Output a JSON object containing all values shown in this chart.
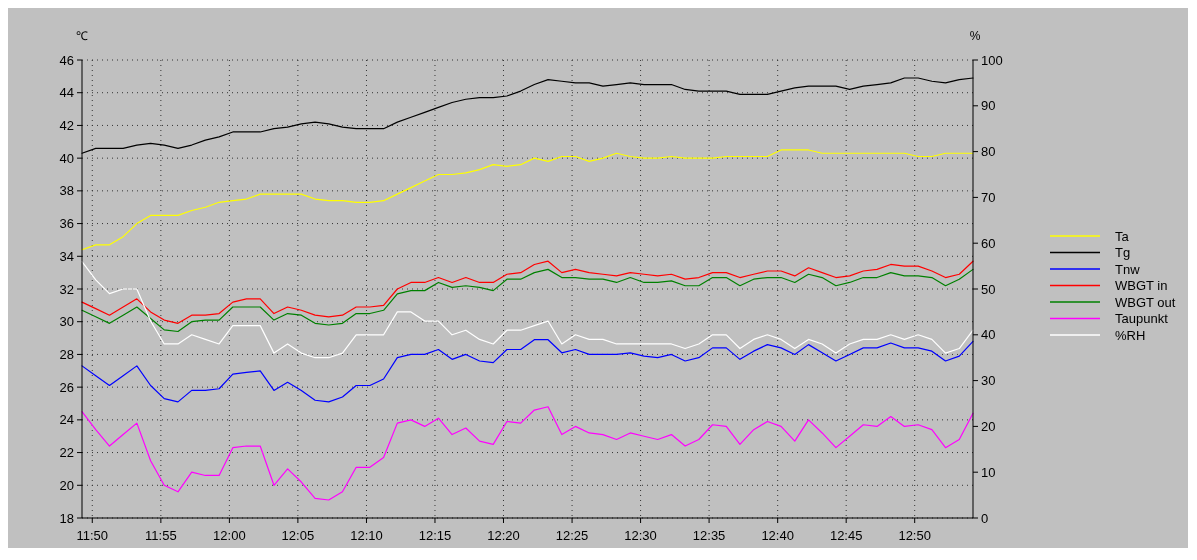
{
  "chart_data": {
    "type": "line",
    "ylabel": "℃",
    "y2label": "%",
    "x": [
      11.8208,
      11.8375,
      11.8542,
      11.8708,
      11.8875,
      11.9042,
      11.9208,
      11.9375,
      11.9542,
      11.9708,
      11.9875,
      12.0042,
      12.0208,
      12.0375,
      12.0542,
      12.0708,
      12.0875,
      12.1042,
      12.1208,
      12.1375,
      12.1542,
      12.1708,
      12.1875,
      12.2042,
      12.2208,
      12.2375,
      12.2542,
      12.2708,
      12.2875,
      12.3042,
      12.3208,
      12.3375,
      12.3542,
      12.3708,
      12.3875,
      12.4042,
      12.4208,
      12.4375,
      12.4542,
      12.4708,
      12.4875,
      12.5042,
      12.5208,
      12.5375,
      12.5542,
      12.5708,
      12.5875,
      12.6042,
      12.6208,
      12.6375,
      12.6542,
      12.6708,
      12.6875,
      12.7042,
      12.7208,
      12.7375,
      12.7542,
      12.7708,
      12.7875,
      12.8042,
      12.8208,
      12.8375,
      12.8542,
      12.8708,
      12.8875,
      12.9042
    ],
    "xlim": [
      11.8208,
      12.9042
    ],
    "xticks": [
      {
        "value": 11.8333,
        "label": "11:50"
      },
      {
        "value": 11.9167,
        "label": "11:55"
      },
      {
        "value": 12,
        "label": "12:00"
      },
      {
        "value": 12.0833,
        "label": "12:05"
      },
      {
        "value": 12.1667,
        "label": "12:10"
      },
      {
        "value": 12.25,
        "label": "12:15"
      },
      {
        "value": 12.3333,
        "label": "12:20"
      },
      {
        "value": 12.4167,
        "label": "12:25"
      },
      {
        "value": 12.5,
        "label": "12:30"
      },
      {
        "value": 12.5833,
        "label": "12:35"
      },
      {
        "value": 12.6667,
        "label": "12:40"
      },
      {
        "value": 12.75,
        "label": "12:45"
      },
      {
        "value": 12.8333,
        "label": "12:50"
      }
    ],
    "ylim": [
      18,
      46
    ],
    "yticks": [
      18,
      20,
      22,
      24,
      26,
      28,
      30,
      32,
      34,
      36,
      38,
      40,
      42,
      44,
      46
    ],
    "y2lim": [
      0,
      100
    ],
    "y2ticks": [
      0,
      10,
      20,
      30,
      40,
      50,
      60,
      70,
      80,
      90,
      100
    ],
    "grid": true,
    "legend": "right",
    "line_style": "solid",
    "series": [
      {
        "name": "Ta",
        "color": "#ffff00",
        "values": [
          34.4,
          34.7,
          34.7,
          35.2,
          36.0,
          36.5,
          36.5,
          36.5,
          36.8,
          37.0,
          37.3,
          37.4,
          37.5,
          37.8,
          37.8,
          37.8,
          37.8,
          37.5,
          37.4,
          37.4,
          37.3,
          37.3,
          37.4,
          37.8,
          38.2,
          38.6,
          39.0,
          39.0,
          39.1,
          39.3,
          39.6,
          39.5,
          39.6,
          40.0,
          39.8,
          40.1,
          40.1,
          39.8,
          40.0,
          40.3,
          40.1,
          40.0,
          40.0,
          40.1,
          40.0,
          40.0,
          40.0,
          40.1,
          40.1,
          40.1,
          40.1,
          40.5,
          40.5,
          40.5,
          40.3,
          40.3,
          40.3,
          40.3,
          40.3,
          40.3,
          40.3,
          40.1,
          40.1,
          40.3,
          40.3,
          40.3
        ]
      },
      {
        "name": "Tg",
        "color": "#000000",
        "values": [
          40.3,
          40.6,
          40.6,
          40.6,
          40.8,
          40.9,
          40.8,
          40.6,
          40.8,
          41.1,
          41.3,
          41.6,
          41.6,
          41.6,
          41.8,
          41.9,
          42.1,
          42.2,
          42.1,
          41.9,
          41.8,
          41.8,
          41.8,
          42.2,
          42.5,
          42.8,
          43.1,
          43.4,
          43.6,
          43.7,
          43.7,
          43.8,
          44.1,
          44.5,
          44.8,
          44.7,
          44.6,
          44.6,
          44.4,
          44.5,
          44.6,
          44.5,
          44.5,
          44.5,
          44.2,
          44.1,
          44.1,
          44.1,
          43.9,
          43.9,
          43.9,
          44.1,
          44.3,
          44.4,
          44.4,
          44.4,
          44.2,
          44.4,
          44.5,
          44.6,
          44.9,
          44.9,
          44.7,
          44.6,
          44.8,
          44.9
        ]
      },
      {
        "name": "Tnw",
        "color": "#0000ff",
        "values": [
          27.3,
          26.7,
          26.1,
          26.7,
          27.3,
          26.1,
          25.3,
          25.1,
          25.8,
          25.8,
          25.9,
          26.8,
          26.9,
          27.0,
          25.8,
          26.3,
          25.8,
          25.2,
          25.1,
          25.4,
          26.1,
          26.1,
          26.5,
          27.8,
          28.0,
          28.0,
          28.3,
          27.7,
          28.0,
          27.6,
          27.5,
          28.3,
          28.3,
          28.9,
          28.9,
          28.1,
          28.3,
          28.0,
          28.0,
          28.0,
          28.1,
          27.9,
          27.8,
          28.0,
          27.6,
          27.8,
          28.4,
          28.4,
          27.7,
          28.2,
          28.6,
          28.4,
          28.0,
          28.6,
          28.1,
          27.6,
          28.0,
          28.4,
          28.4,
          28.7,
          28.4,
          28.4,
          28.2,
          27.6,
          27.9,
          28.8
        ]
      },
      {
        "name": "WBGT in",
        "color": "#ff0000",
        "values": [
          31.2,
          30.8,
          30.4,
          30.9,
          31.4,
          30.6,
          30.1,
          29.9,
          30.4,
          30.4,
          30.5,
          31.2,
          31.4,
          31.4,
          30.5,
          30.9,
          30.7,
          30.4,
          30.3,
          30.4,
          30.9,
          30.9,
          31.0,
          32.0,
          32.4,
          32.4,
          32.7,
          32.4,
          32.7,
          32.4,
          32.4,
          32.9,
          33.0,
          33.5,
          33.7,
          33.0,
          33.2,
          33.0,
          32.9,
          32.8,
          33.0,
          32.9,
          32.8,
          32.9,
          32.6,
          32.7,
          33.0,
          33.0,
          32.7,
          32.9,
          33.1,
          33.1,
          32.8,
          33.3,
          33.0,
          32.7,
          32.8,
          33.1,
          33.2,
          33.5,
          33.4,
          33.4,
          33.1,
          32.7,
          32.9,
          33.7
        ]
      },
      {
        "name": "WBGT out",
        "color": "#008000",
        "values": [
          30.7,
          30.3,
          29.9,
          30.4,
          30.9,
          30.2,
          29.5,
          29.4,
          30.0,
          30.1,
          30.1,
          30.9,
          30.9,
          30.9,
          30.1,
          30.5,
          30.4,
          29.9,
          29.8,
          29.9,
          30.5,
          30.5,
          30.7,
          31.7,
          31.9,
          31.9,
          32.4,
          32.1,
          32.2,
          32.1,
          31.9,
          32.6,
          32.6,
          33.0,
          33.2,
          32.7,
          32.7,
          32.6,
          32.6,
          32.4,
          32.7,
          32.4,
          32.4,
          32.5,
          32.2,
          32.2,
          32.7,
          32.7,
          32.2,
          32.6,
          32.7,
          32.7,
          32.4,
          32.9,
          32.7,
          32.2,
          32.4,
          32.7,
          32.7,
          33.0,
          32.8,
          32.8,
          32.7,
          32.2,
          32.6,
          33.2
        ]
      },
      {
        "name": "Taupunkt",
        "color": "#ff00ff",
        "values": [
          24.5,
          23.4,
          22.4,
          23.1,
          23.8,
          21.5,
          20.0,
          19.6,
          20.8,
          20.6,
          20.6,
          22.3,
          22.4,
          22.4,
          20.0,
          21.0,
          20.2,
          19.2,
          19.1,
          19.6,
          21.1,
          21.1,
          21.7,
          23.8,
          24.0,
          23.6,
          24.1,
          23.1,
          23.5,
          22.7,
          22.5,
          23.9,
          23.8,
          24.6,
          24.8,
          23.1,
          23.6,
          23.2,
          23.1,
          22.8,
          23.2,
          23.0,
          22.8,
          23.1,
          22.4,
          22.8,
          23.7,
          23.6,
          22.5,
          23.4,
          23.9,
          23.6,
          22.7,
          24.0,
          23.2,
          22.3,
          23.0,
          23.7,
          23.6,
          24.2,
          23.6,
          23.7,
          23.4,
          22.3,
          22.8,
          24.4
        ]
      },
      {
        "name": "%RH",
        "color": "#ffffff",
        "axis": "y2",
        "values": [
          56,
          52,
          49,
          50,
          50,
          43,
          38,
          38,
          40,
          39,
          38,
          42,
          42,
          42,
          36,
          38,
          36,
          35,
          35,
          36,
          40,
          40,
          40,
          45,
          45,
          43,
          43,
          40,
          41,
          39,
          38,
          41,
          41,
          42,
          43,
          38,
          40,
          39,
          39,
          38,
          38,
          38,
          38,
          38,
          37,
          38,
          40,
          40,
          37,
          39,
          40,
          39,
          37,
          39,
          38,
          36,
          38,
          39,
          39,
          40,
          39,
          40,
          39,
          36,
          37,
          41
        ]
      }
    ]
  }
}
